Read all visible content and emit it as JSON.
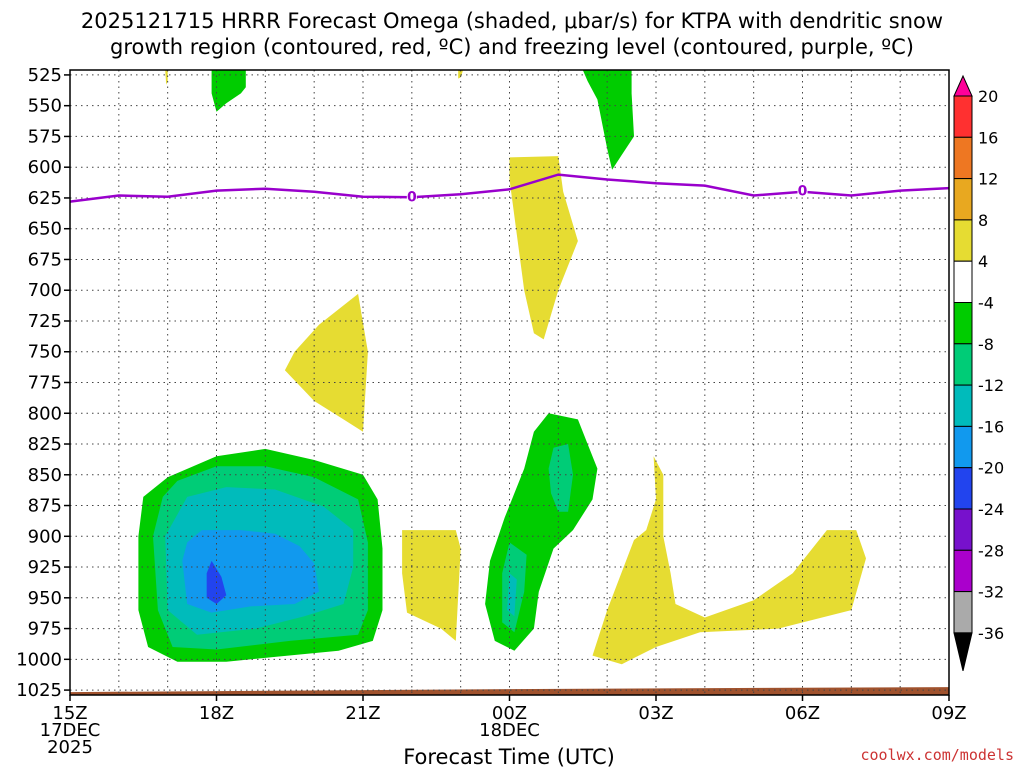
{
  "chart_data": {
    "type": "contour",
    "title_lines": [
      "2025121715 HRRR Forecast Omega (shaded, μbar/s) for KTPA with dendritic snow",
      "growth region (contoured, red, ºC) and freezing level (contoured, purple, ºC)"
    ],
    "xlabel": "Forecast Time (UTC)",
    "x_ticks": [
      {
        "hour": 0,
        "lines": [
          "15Z",
          "17DEC",
          "2025"
        ]
      },
      {
        "hour": 3,
        "lines": [
          "18Z"
        ]
      },
      {
        "hour": 6,
        "lines": [
          "21Z"
        ]
      },
      {
        "hour": 9,
        "lines": [
          "00Z",
          "18DEC"
        ]
      },
      {
        "hour": 12,
        "lines": [
          "03Z"
        ]
      },
      {
        "hour": 15,
        "lines": [
          "06Z"
        ]
      },
      {
        "hour": 18,
        "lines": [
          "09Z"
        ]
      }
    ],
    "xlim": [
      0,
      18
    ],
    "y_ticks": [
      525,
      550,
      575,
      600,
      625,
      650,
      675,
      700,
      725,
      750,
      775,
      800,
      825,
      850,
      875,
      900,
      925,
      950,
      975,
      1000,
      1025
    ],
    "ylim": [
      521,
      1029
    ],
    "colorbar": {
      "labels": [
        "20",
        "16",
        "12",
        "8",
        "4",
        "-4",
        "-8",
        "-12",
        "-16",
        "-20",
        "-24",
        "-28",
        "-32",
        "-36"
      ],
      "colors": [
        "#ff0099",
        "#ff3030",
        "#ee7722",
        "#e8a820",
        "#e6dc32",
        "#ffffff",
        "#00cc00",
        "#00cc77",
        "#00bbbb",
        "#1199ee",
        "#2244ee",
        "#7711cc",
        "#aa00cc",
        "#aaaaaa",
        "#000000"
      ]
    },
    "freezing_level": {
      "label": "0",
      "label_points": [
        [
          7.0,
          624
        ],
        [
          15.0,
          619
        ]
      ],
      "points": [
        [
          0,
          628
        ],
        [
          1.0,
          623
        ],
        [
          2.0,
          624
        ],
        [
          3.0,
          619
        ],
        [
          4.0,
          617.5
        ],
        [
          5.0,
          620
        ],
        [
          6.0,
          624
        ],
        [
          7.0,
          624.5
        ],
        [
          8.0,
          622
        ],
        [
          9.0,
          618
        ],
        [
          10.0,
          606
        ],
        [
          11.0,
          610
        ],
        [
          12.0,
          613
        ],
        [
          13.0,
          615
        ],
        [
          14.0,
          623
        ],
        [
          15.0,
          620
        ],
        [
          16.0,
          623
        ],
        [
          17.0,
          619
        ],
        [
          18.0,
          617
        ]
      ]
    },
    "omega_regions": [
      {
        "series": "green",
        "value_class": "-4 to -8",
        "points": [
          [
            2.9,
            521
          ],
          [
            3.6,
            521
          ],
          [
            3.6,
            535
          ],
          [
            3.5,
            540
          ],
          [
            3.2,
            548
          ],
          [
            3.0,
            555
          ],
          [
            2.9,
            540
          ]
        ]
      },
      {
        "series": "green",
        "value_class": "-4 to -8",
        "points": [
          [
            10.5,
            521
          ],
          [
            11.5,
            521
          ],
          [
            11.5,
            540
          ],
          [
            11.55,
            575
          ],
          [
            11.3,
            590
          ],
          [
            11.1,
            602
          ],
          [
            11.0,
            585
          ],
          [
            10.8,
            545
          ],
          [
            10.6,
            530
          ]
        ]
      },
      {
        "series": "yellow",
        "value_class": "4 to 8",
        "points": [
          [
            1.95,
            521
          ],
          [
            2.0,
            521
          ],
          [
            2.0,
            530
          ],
          [
            1.97,
            533
          ]
        ]
      },
      {
        "series": "yellow",
        "value_class": "4 to 8",
        "points": [
          [
            7.95,
            521
          ],
          [
            8.05,
            521
          ],
          [
            8.0,
            527
          ],
          [
            7.95,
            528
          ]
        ]
      },
      {
        "series": "yellow",
        "value_class": "4 to 8",
        "points": [
          [
            9.0,
            592
          ],
          [
            10.0,
            591
          ],
          [
            10.1,
            620
          ],
          [
            10.4,
            660
          ],
          [
            10.0,
            700
          ],
          [
            9.7,
            740
          ],
          [
            9.5,
            735
          ],
          [
            9.3,
            700
          ],
          [
            9.2,
            670
          ],
          [
            9.1,
            640
          ],
          [
            9.0,
            610
          ]
        ]
      },
      {
        "series": "yellow",
        "value_class": "4 to 8",
        "points": [
          [
            5.1,
            728
          ],
          [
            5.9,
            703
          ],
          [
            6.1,
            750
          ],
          [
            6.0,
            815
          ],
          [
            5.6,
            805
          ],
          [
            5.0,
            790
          ],
          [
            4.4,
            765
          ],
          [
            4.6,
            750
          ]
        ]
      },
      {
        "series": "yellow",
        "value_class": "4 to 8",
        "points": [
          [
            6.8,
            895
          ],
          [
            7.9,
            895
          ],
          [
            8.0,
            910
          ],
          [
            7.9,
            985
          ],
          [
            7.6,
            975
          ],
          [
            6.9,
            962
          ],
          [
            6.8,
            930
          ]
        ]
      },
      {
        "series": "yellow",
        "value_class": "4 to 8",
        "points": [
          [
            11.55,
            903
          ],
          [
            11.8,
            895
          ],
          [
            12.0,
            870
          ],
          [
            11.95,
            835
          ],
          [
            12.15,
            850
          ],
          [
            12.15,
            900
          ],
          [
            12.3,
            930
          ],
          [
            12.4,
            955
          ],
          [
            13.0,
            966
          ],
          [
            14.0,
            952
          ],
          [
            14.8,
            930
          ],
          [
            15.5,
            895
          ],
          [
            16.1,
            895
          ],
          [
            16.3,
            918
          ],
          [
            16.0,
            960
          ],
          [
            14.5,
            975
          ],
          [
            12.9,
            978
          ],
          [
            12.0,
            990
          ],
          [
            11.3,
            1004
          ],
          [
            10.7,
            997
          ],
          [
            11.0,
            960
          ]
        ]
      },
      {
        "series": "green",
        "value_class": "-4 to -8",
        "points": [
          [
            2.0,
            852
          ],
          [
            3.0,
            835
          ],
          [
            4.0,
            829
          ],
          [
            5.0,
            838
          ],
          [
            6.0,
            850
          ],
          [
            6.3,
            870
          ],
          [
            6.4,
            910
          ],
          [
            6.4,
            960
          ],
          [
            6.2,
            985
          ],
          [
            5.5,
            993
          ],
          [
            4.2,
            998
          ],
          [
            3.2,
            1002
          ],
          [
            2.2,
            1002
          ],
          [
            1.6,
            990
          ],
          [
            1.4,
            960
          ],
          [
            1.4,
            900
          ],
          [
            1.5,
            868
          ]
        ]
      },
      {
        "series": "green2",
        "value_class": "-8 to -12",
        "points": [
          [
            2.2,
            855
          ],
          [
            3.0,
            843
          ],
          [
            4.0,
            843
          ],
          [
            5.0,
            852
          ],
          [
            5.9,
            870
          ],
          [
            6.1,
            905
          ],
          [
            6.1,
            960
          ],
          [
            5.9,
            980
          ],
          [
            4.5,
            985
          ],
          [
            3.0,
            992
          ],
          [
            2.1,
            990
          ],
          [
            1.8,
            960
          ],
          [
            1.7,
            900
          ],
          [
            1.9,
            868
          ]
        ]
      },
      {
        "series": "teal",
        "value_class": "-12 to -16",
        "points": [
          [
            2.4,
            868
          ],
          [
            3.2,
            860
          ],
          [
            4.2,
            862
          ],
          [
            5.2,
            876
          ],
          [
            5.8,
            895
          ],
          [
            5.8,
            925
          ],
          [
            5.6,
            955
          ],
          [
            4.8,
            965
          ],
          [
            3.8,
            975
          ],
          [
            2.6,
            980
          ],
          [
            2.0,
            960
          ],
          [
            1.95,
            900
          ]
        ]
      },
      {
        "series": "lightblue",
        "value_class": "-16 to -20",
        "points": [
          [
            2.7,
            895
          ],
          [
            3.5,
            895
          ],
          [
            4.2,
            898
          ],
          [
            4.7,
            908
          ],
          [
            5.0,
            922
          ],
          [
            5.1,
            945
          ],
          [
            4.6,
            955
          ],
          [
            3.7,
            957
          ],
          [
            2.9,
            962
          ],
          [
            2.4,
            955
          ],
          [
            2.3,
            920
          ],
          [
            2.4,
            905
          ]
        ]
      },
      {
        "series": "blue",
        "value_class": "-20 to -24",
        "points": [
          [
            2.9,
            920
          ],
          [
            3.1,
            933
          ],
          [
            3.2,
            948
          ],
          [
            3.0,
            955
          ],
          [
            2.8,
            950
          ],
          [
            2.8,
            930
          ]
        ]
      },
      {
        "series": "green",
        "value_class": "-4 to -8",
        "points": [
          [
            9.8,
            800
          ],
          [
            10.4,
            805
          ],
          [
            10.6,
            825
          ],
          [
            10.8,
            845
          ],
          [
            10.7,
            870
          ],
          [
            10.3,
            895
          ],
          [
            9.9,
            910
          ],
          [
            9.6,
            945
          ],
          [
            9.5,
            975
          ],
          [
            9.1,
            993
          ],
          [
            8.7,
            985
          ],
          [
            8.5,
            955
          ],
          [
            8.6,
            920
          ],
          [
            8.9,
            885
          ],
          [
            9.3,
            845
          ],
          [
            9.5,
            815
          ]
        ]
      },
      {
        "series": "green2",
        "value_class": "-8 to -12",
        "points": [
          [
            9.0,
            905
          ],
          [
            9.35,
            915
          ],
          [
            9.3,
            945
          ],
          [
            9.1,
            978
          ],
          [
            8.85,
            970
          ],
          [
            8.85,
            930
          ]
        ]
      },
      {
        "series": "green2",
        "value_class": "-8 to -12",
        "points": [
          [
            9.9,
            828
          ],
          [
            10.2,
            825
          ],
          [
            10.3,
            850
          ],
          [
            10.2,
            880
          ],
          [
            10.0,
            880
          ],
          [
            9.85,
            865
          ],
          [
            9.8,
            845
          ]
        ]
      },
      {
        "series": "teal",
        "value_class": "-12 to -16",
        "points": [
          [
            9.0,
            930
          ],
          [
            9.15,
            935
          ],
          [
            9.1,
            965
          ],
          [
            8.95,
            960
          ]
        ]
      }
    ],
    "surface": {
      "label": "ground",
      "color": "#a0522d"
    }
  },
  "colors": {
    "yellow": "#e6dc32",
    "green": "#00cc00",
    "green2": "#00cc77",
    "teal": "#00bbbb",
    "lightblue": "#1199ee",
    "blue": "#2244ee",
    "freezing": "#9900cc",
    "ground": "#a0522d"
  },
  "credit": "coolwx.com/models"
}
